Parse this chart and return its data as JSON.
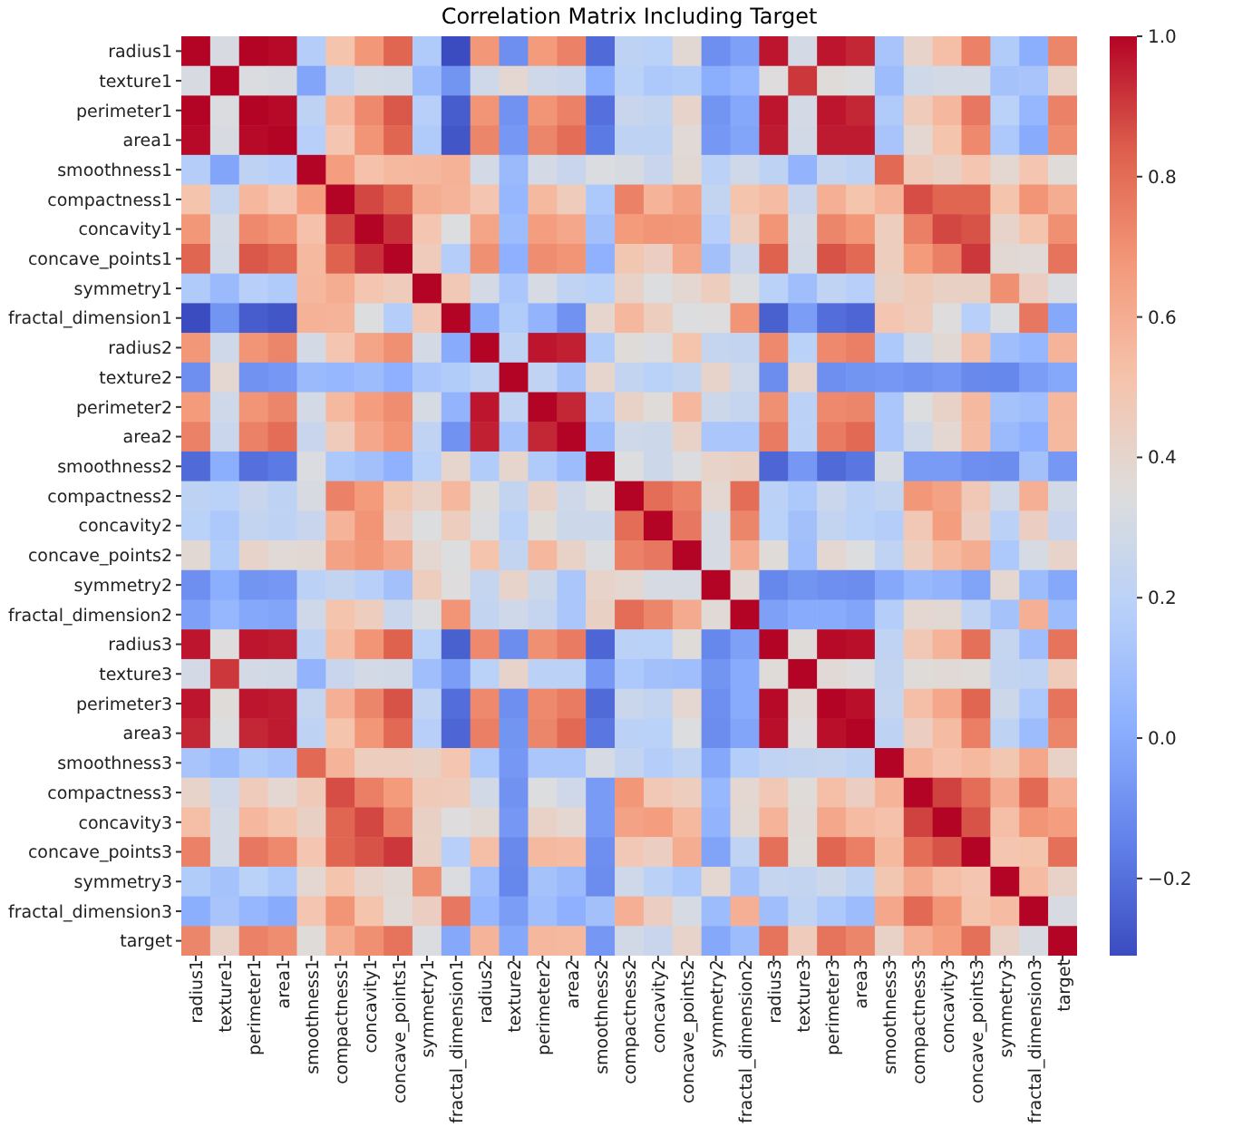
{
  "chart_data": {
    "type": "heatmap",
    "title": "Correlation Matrix Including Target",
    "categories": [
      "radius1",
      "texture1",
      "perimeter1",
      "area1",
      "smoothness1",
      "compactness1",
      "concavity1",
      "concave_points1",
      "symmetry1",
      "fractal_dimension1",
      "radius2",
      "texture2",
      "perimeter2",
      "area2",
      "smoothness2",
      "compactness2",
      "concavity2",
      "concave_points2",
      "symmetry2",
      "fractal_dimension2",
      "radius3",
      "texture3",
      "perimeter3",
      "area3",
      "smoothness3",
      "compactness3",
      "concavity3",
      "concave_points3",
      "symmetry3",
      "fractal_dimension3",
      "target"
    ],
    "y_categories": [
      "radius1",
      "texture1",
      "perimeter1",
      "area1",
      "smoothness1",
      "compactness1",
      "concavity1",
      "concave_points1",
      "symmetry1",
      "fractal_dimension1",
      "radius2",
      "texture2",
      "perimeter2",
      "area2",
      "smoothness2",
      "compactness2",
      "concavity2",
      "concave_points2",
      "symmetry2",
      "fractal_dimension2",
      "radius3",
      "texture3",
      "perimeter3",
      "area3",
      "smoothness3",
      "compactness3",
      "concavity3",
      "concave_points3",
      "symmetry3",
      "fractal_dimension3",
      "target"
    ],
    "cells": [
      [
        1,
        0.32,
        1.0,
        0.99,
        0.17,
        0.51,
        0.68,
        0.82,
        0.15,
        -0.31,
        0.68,
        -0.1,
        0.67,
        0.74,
        -0.22,
        0.21,
        0.19,
        0.38,
        -0.1,
        -0.04,
        0.97,
        0.3,
        0.97,
        0.94,
        0.12,
        0.41,
        0.53,
        0.74,
        0.16,
        0.01,
        0.73
      ],
      [
        0.32,
        1,
        0.33,
        0.32,
        -0.02,
        0.24,
        0.3,
        0.29,
        0.07,
        -0.08,
        0.28,
        0.39,
        0.28,
        0.26,
        0.01,
        0.19,
        0.14,
        0.16,
        0.01,
        0.05,
        0.35,
        0.91,
        0.36,
        0.34,
        0.08,
        0.28,
        0.3,
        0.3,
        0.11,
        0.12,
        0.42
      ],
      [
        1.0,
        0.33,
        1,
        0.99,
        0.21,
        0.56,
        0.72,
        0.85,
        0.18,
        -0.26,
        0.69,
        -0.09,
        0.69,
        0.74,
        -0.2,
        0.25,
        0.23,
        0.41,
        -0.08,
        -0.01,
        0.97,
        0.3,
        0.97,
        0.94,
        0.15,
        0.46,
        0.56,
        0.77,
        0.19,
        0.05,
        0.74
      ],
      [
        0.99,
        0.32,
        0.99,
        1,
        0.18,
        0.5,
        0.69,
        0.82,
        0.15,
        -0.28,
        0.73,
        -0.07,
        0.73,
        0.8,
        -0.17,
        0.21,
        0.21,
        0.37,
        -0.07,
        -0.02,
        0.96,
        0.29,
        0.96,
        0.96,
        0.12,
        0.39,
        0.51,
        0.72,
        0.14,
        0,
        0.71
      ],
      [
        0.17,
        -0.02,
        0.21,
        0.18,
        1,
        0.66,
        0.52,
        0.55,
        0.56,
        0.58,
        0.3,
        0.07,
        0.3,
        0.25,
        0.33,
        0.32,
        0.25,
        0.38,
        0.2,
        0.28,
        0.21,
        0.04,
        0.24,
        0.21,
        0.81,
        0.47,
        0.43,
        0.5,
        0.39,
        0.5,
        0.36
      ],
      [
        0.51,
        0.24,
        0.56,
        0.5,
        0.66,
        1,
        0.88,
        0.83,
        0.6,
        0.57,
        0.5,
        0.05,
        0.55,
        0.46,
        0.14,
        0.74,
        0.57,
        0.64,
        0.23,
        0.51,
        0.54,
        0.25,
        0.59,
        0.51,
        0.57,
        0.87,
        0.82,
        0.82,
        0.51,
        0.69,
        0.6
      ],
      [
        0.68,
        0.3,
        0.72,
        0.69,
        0.52,
        0.88,
        1,
        0.92,
        0.5,
        0.34,
        0.63,
        0.08,
        0.66,
        0.62,
        0.1,
        0.67,
        0.69,
        0.68,
        0.18,
        0.45,
        0.69,
        0.3,
        0.73,
        0.68,
        0.45,
        0.75,
        0.88,
        0.86,
        0.41,
        0.51,
        0.7
      ],
      [
        0.82,
        0.29,
        0.85,
        0.82,
        0.55,
        0.83,
        0.92,
        1,
        0.46,
        0.17,
        0.7,
        0.02,
        0.71,
        0.69,
        0.03,
        0.49,
        0.44,
        0.62,
        0.1,
        0.26,
        0.83,
        0.29,
        0.86,
        0.81,
        0.45,
        0.67,
        0.75,
        0.91,
        0.38,
        0.37,
        0.78
      ],
      [
        0.15,
        0.07,
        0.18,
        0.15,
        0.56,
        0.6,
        0.5,
        0.46,
        1,
        0.48,
        0.3,
        0.13,
        0.31,
        0.22,
        0.19,
        0.42,
        0.34,
        0.39,
        0.45,
        0.33,
        0.19,
        0.09,
        0.22,
        0.18,
        0.43,
        0.47,
        0.43,
        0.43,
        0.7,
        0.44,
        0.33
      ],
      [
        -0.31,
        -0.08,
        -0.26,
        -0.28,
        0.58,
        0.57,
        0.34,
        0.17,
        0.48,
        1,
        0,
        0.16,
        0.04,
        -0.09,
        0.4,
        0.56,
        0.45,
        0.34,
        0.35,
        0.69,
        -0.25,
        -0.05,
        -0.21,
        -0.23,
        0.5,
        0.46,
        0.35,
        0.18,
        0.33,
        0.77,
        -0.01
      ],
      [
        0.68,
        0.28,
        0.69,
        0.73,
        0.3,
        0.5,
        0.63,
        0.7,
        0.3,
        0,
        1,
        0.21,
        0.97,
        0.95,
        0.16,
        0.36,
        0.33,
        0.51,
        0.24,
        0.23,
        0.72,
        0.19,
        0.72,
        0.75,
        0.14,
        0.29,
        0.38,
        0.53,
        0.09,
        0.05,
        0.57
      ],
      [
        -0.1,
        0.39,
        -0.09,
        -0.07,
        0.07,
        0.05,
        0.08,
        0.02,
        0.13,
        0.16,
        0.21,
        1,
        0.22,
        0.11,
        0.4,
        0.23,
        0.19,
        0.23,
        0.41,
        0.28,
        -0.11,
        0.41,
        -0.1,
        -0.08,
        -0.07,
        -0.09,
        -0.07,
        -0.12,
        -0.13,
        -0.05,
        -0.01
      ],
      [
        0.67,
        0.28,
        0.69,
        0.73,
        0.3,
        0.55,
        0.66,
        0.71,
        0.31,
        0.04,
        0.97,
        0.22,
        1,
        0.94,
        0.15,
        0.42,
        0.36,
        0.56,
        0.27,
        0.24,
        0.7,
        0.2,
        0.72,
        0.73,
        0.13,
        0.34,
        0.42,
        0.55,
        0.11,
        0.09,
        0.56
      ],
      [
        0.74,
        0.26,
        0.74,
        0.8,
        0.25,
        0.46,
        0.62,
        0.69,
        0.22,
        -0.09,
        0.95,
        0.11,
        0.94,
        1,
        0.08,
        0.28,
        0.27,
        0.42,
        0.13,
        0.13,
        0.76,
        0.2,
        0.76,
        0.81,
        0.13,
        0.28,
        0.39,
        0.54,
        0.07,
        0.02,
        0.55
      ],
      [
        -0.22,
        0.01,
        -0.2,
        -0.17,
        0.33,
        0.14,
        0.1,
        0.03,
        0.19,
        0.4,
        0.16,
        0.4,
        0.15,
        0.08,
        1,
        0.34,
        0.27,
        0.33,
        0.41,
        0.43,
        -0.23,
        -0.07,
        -0.22,
        -0.18,
        0.31,
        -0.06,
        -0.06,
        -0.1,
        -0.11,
        0.1,
        -0.07
      ],
      [
        0.21,
        0.19,
        0.25,
        0.21,
        0.32,
        0.74,
        0.67,
        0.49,
        0.42,
        0.56,
        0.36,
        0.23,
        0.42,
        0.28,
        0.34,
        1,
        0.8,
        0.74,
        0.39,
        0.8,
        0.2,
        0.14,
        0.26,
        0.2,
        0.23,
        0.68,
        0.64,
        0.48,
        0.28,
        0.59,
        0.29
      ],
      [
        0.19,
        0.14,
        0.23,
        0.21,
        0.25,
        0.57,
        0.69,
        0.44,
        0.34,
        0.45,
        0.33,
        0.19,
        0.36,
        0.27,
        0.27,
        0.8,
        1,
        0.77,
        0.31,
        0.73,
        0.19,
        0.1,
        0.23,
        0.19,
        0.17,
        0.48,
        0.66,
        0.44,
        0.2,
        0.44,
        0.25
      ],
      [
        0.38,
        0.16,
        0.41,
        0.37,
        0.38,
        0.64,
        0.68,
        0.62,
        0.39,
        0.34,
        0.51,
        0.23,
        0.56,
        0.42,
        0.33,
        0.74,
        0.77,
        1,
        0.31,
        0.61,
        0.36,
        0.09,
        0.39,
        0.34,
        0.22,
        0.45,
        0.55,
        0.6,
        0.14,
        0.31,
        0.41
      ],
      [
        -0.1,
        0.01,
        -0.08,
        -0.07,
        0.2,
        0.23,
        0.18,
        0.1,
        0.45,
        0.35,
        0.24,
        0.41,
        0.27,
        0.13,
        0.41,
        0.39,
        0.31,
        0.31,
        1,
        0.37,
        -0.13,
        -0.08,
        -0.1,
        -0.11,
        -0.01,
        0.06,
        0.04,
        -0.03,
        0.39,
        0.08,
        -0.01
      ],
      [
        -0.04,
        0.05,
        -0.01,
        -0.02,
        0.28,
        0.51,
        0.45,
        0.26,
        0.33,
        0.69,
        0.23,
        0.28,
        0.24,
        0.13,
        0.43,
        0.8,
        0.73,
        0.61,
        0.37,
        1,
        -0.04,
        0,
        0,
        -0.02,
        0.17,
        0.39,
        0.38,
        0.22,
        0.11,
        0.59,
        0.08
      ],
      [
        0.97,
        0.35,
        0.97,
        0.96,
        0.21,
        0.54,
        0.69,
        0.83,
        0.19,
        -0.25,
        0.72,
        -0.11,
        0.7,
        0.76,
        -0.23,
        0.2,
        0.19,
        0.36,
        -0.13,
        -0.04,
        1,
        0.36,
        0.99,
        0.98,
        0.22,
        0.48,
        0.57,
        0.79,
        0.24,
        0.09,
        0.78
      ],
      [
        0.3,
        0.91,
        0.3,
        0.29,
        0.04,
        0.25,
        0.3,
        0.29,
        0.09,
        -0.05,
        0.19,
        0.41,
        0.2,
        0.2,
        -0.07,
        0.14,
        0.1,
        0.09,
        -0.08,
        0,
        0.36,
        1,
        0.37,
        0.35,
        0.23,
        0.36,
        0.37,
        0.36,
        0.23,
        0.22,
        0.46
      ],
      [
        0.97,
        0.36,
        0.97,
        0.96,
        0.24,
        0.59,
        0.73,
        0.86,
        0.22,
        -0.21,
        0.72,
        -0.1,
        0.72,
        0.76,
        -0.22,
        0.26,
        0.23,
        0.39,
        -0.1,
        0,
        0.99,
        0.37,
        1,
        0.98,
        0.24,
        0.53,
        0.62,
        0.82,
        0.27,
        0.14,
        0.78
      ],
      [
        0.94,
        0.34,
        0.94,
        0.96,
        0.21,
        0.51,
        0.68,
        0.81,
        0.18,
        -0.23,
        0.75,
        -0.08,
        0.73,
        0.81,
        -0.18,
        0.2,
        0.19,
        0.34,
        -0.11,
        -0.02,
        0.98,
        0.35,
        0.98,
        1,
        0.21,
        0.44,
        0.54,
        0.75,
        0.21,
        0.08,
        0.73
      ],
      [
        0.12,
        0.08,
        0.15,
        0.12,
        0.81,
        0.57,
        0.45,
        0.45,
        0.43,
        0.5,
        0.14,
        -0.07,
        0.13,
        0.13,
        0.31,
        0.23,
        0.17,
        0.22,
        -0.01,
        0.17,
        0.22,
        0.23,
        0.24,
        0.21,
        1,
        0.57,
        0.52,
        0.55,
        0.49,
        0.62,
        0.42
      ],
      [
        0.41,
        0.28,
        0.46,
        0.39,
        0.47,
        0.87,
        0.75,
        0.67,
        0.47,
        0.46,
        0.29,
        -0.09,
        0.34,
        0.28,
        -0.06,
        0.68,
        0.48,
        0.45,
        0.06,
        0.39,
        0.48,
        0.36,
        0.53,
        0.44,
        0.57,
        1,
        0.89,
        0.8,
        0.61,
        0.81,
        0.59
      ],
      [
        0.53,
        0.3,
        0.56,
        0.51,
        0.43,
        0.82,
        0.88,
        0.75,
        0.43,
        0.35,
        0.38,
        -0.07,
        0.42,
        0.39,
        -0.06,
        0.64,
        0.66,
        0.55,
        0.04,
        0.38,
        0.57,
        0.37,
        0.62,
        0.54,
        0.52,
        0.89,
        1,
        0.86,
        0.53,
        0.69,
        0.66
      ],
      [
        0.74,
        0.3,
        0.77,
        0.72,
        0.5,
        0.82,
        0.86,
        0.91,
        0.43,
        0.18,
        0.53,
        -0.12,
        0.55,
        0.54,
        -0.1,
        0.48,
        0.44,
        0.6,
        -0.03,
        0.22,
        0.79,
        0.36,
        0.82,
        0.75,
        0.55,
        0.8,
        0.86,
        1,
        0.5,
        0.51,
        0.79
      ],
      [
        0.16,
        0.11,
        0.19,
        0.14,
        0.39,
        0.51,
        0.41,
        0.38,
        0.7,
        0.33,
        0.09,
        -0.13,
        0.11,
        0.07,
        -0.11,
        0.28,
        0.2,
        0.14,
        0.39,
        0.11,
        0.24,
        0.23,
        0.27,
        0.21,
        0.49,
        0.61,
        0.53,
        0.5,
        1,
        0.54,
        0.42
      ],
      [
        0.01,
        0.12,
        0.05,
        0,
        0.5,
        0.69,
        0.51,
        0.37,
        0.44,
        0.77,
        0.05,
        -0.05,
        0.09,
        0.02,
        0.1,
        0.59,
        0.44,
        0.31,
        0.08,
        0.59,
        0.09,
        0.22,
        0.14,
        0.08,
        0.62,
        0.81,
        0.69,
        0.51,
        0.54,
        1,
        0.32
      ],
      [
        0.73,
        0.42,
        0.74,
        0.71,
        0.36,
        0.6,
        0.7,
        0.78,
        0.33,
        -0.01,
        0.57,
        -0.01,
        0.56,
        0.55,
        -0.07,
        0.29,
        0.25,
        0.41,
        -0.01,
        0.08,
        0.78,
        0.46,
        0.78,
        0.73,
        0.42,
        0.59,
        0.66,
        0.79,
        0.42,
        0.32,
        1
      ]
    ],
    "clim": [
      -0.31,
      1.0
    ],
    "cticks": [
      {
        "value": -0.2,
        "label": "−0.2"
      },
      {
        "value": 0,
        "label": "0.0"
      },
      {
        "value": 0.2,
        "label": "0.2"
      },
      {
        "value": 0.4,
        "label": "0.4"
      },
      {
        "value": 0.6,
        "label": "0.6"
      },
      {
        "value": 0.8,
        "label": "0.8"
      },
      {
        "value": 1.0,
        "label": "1.0"
      }
    ]
  }
}
